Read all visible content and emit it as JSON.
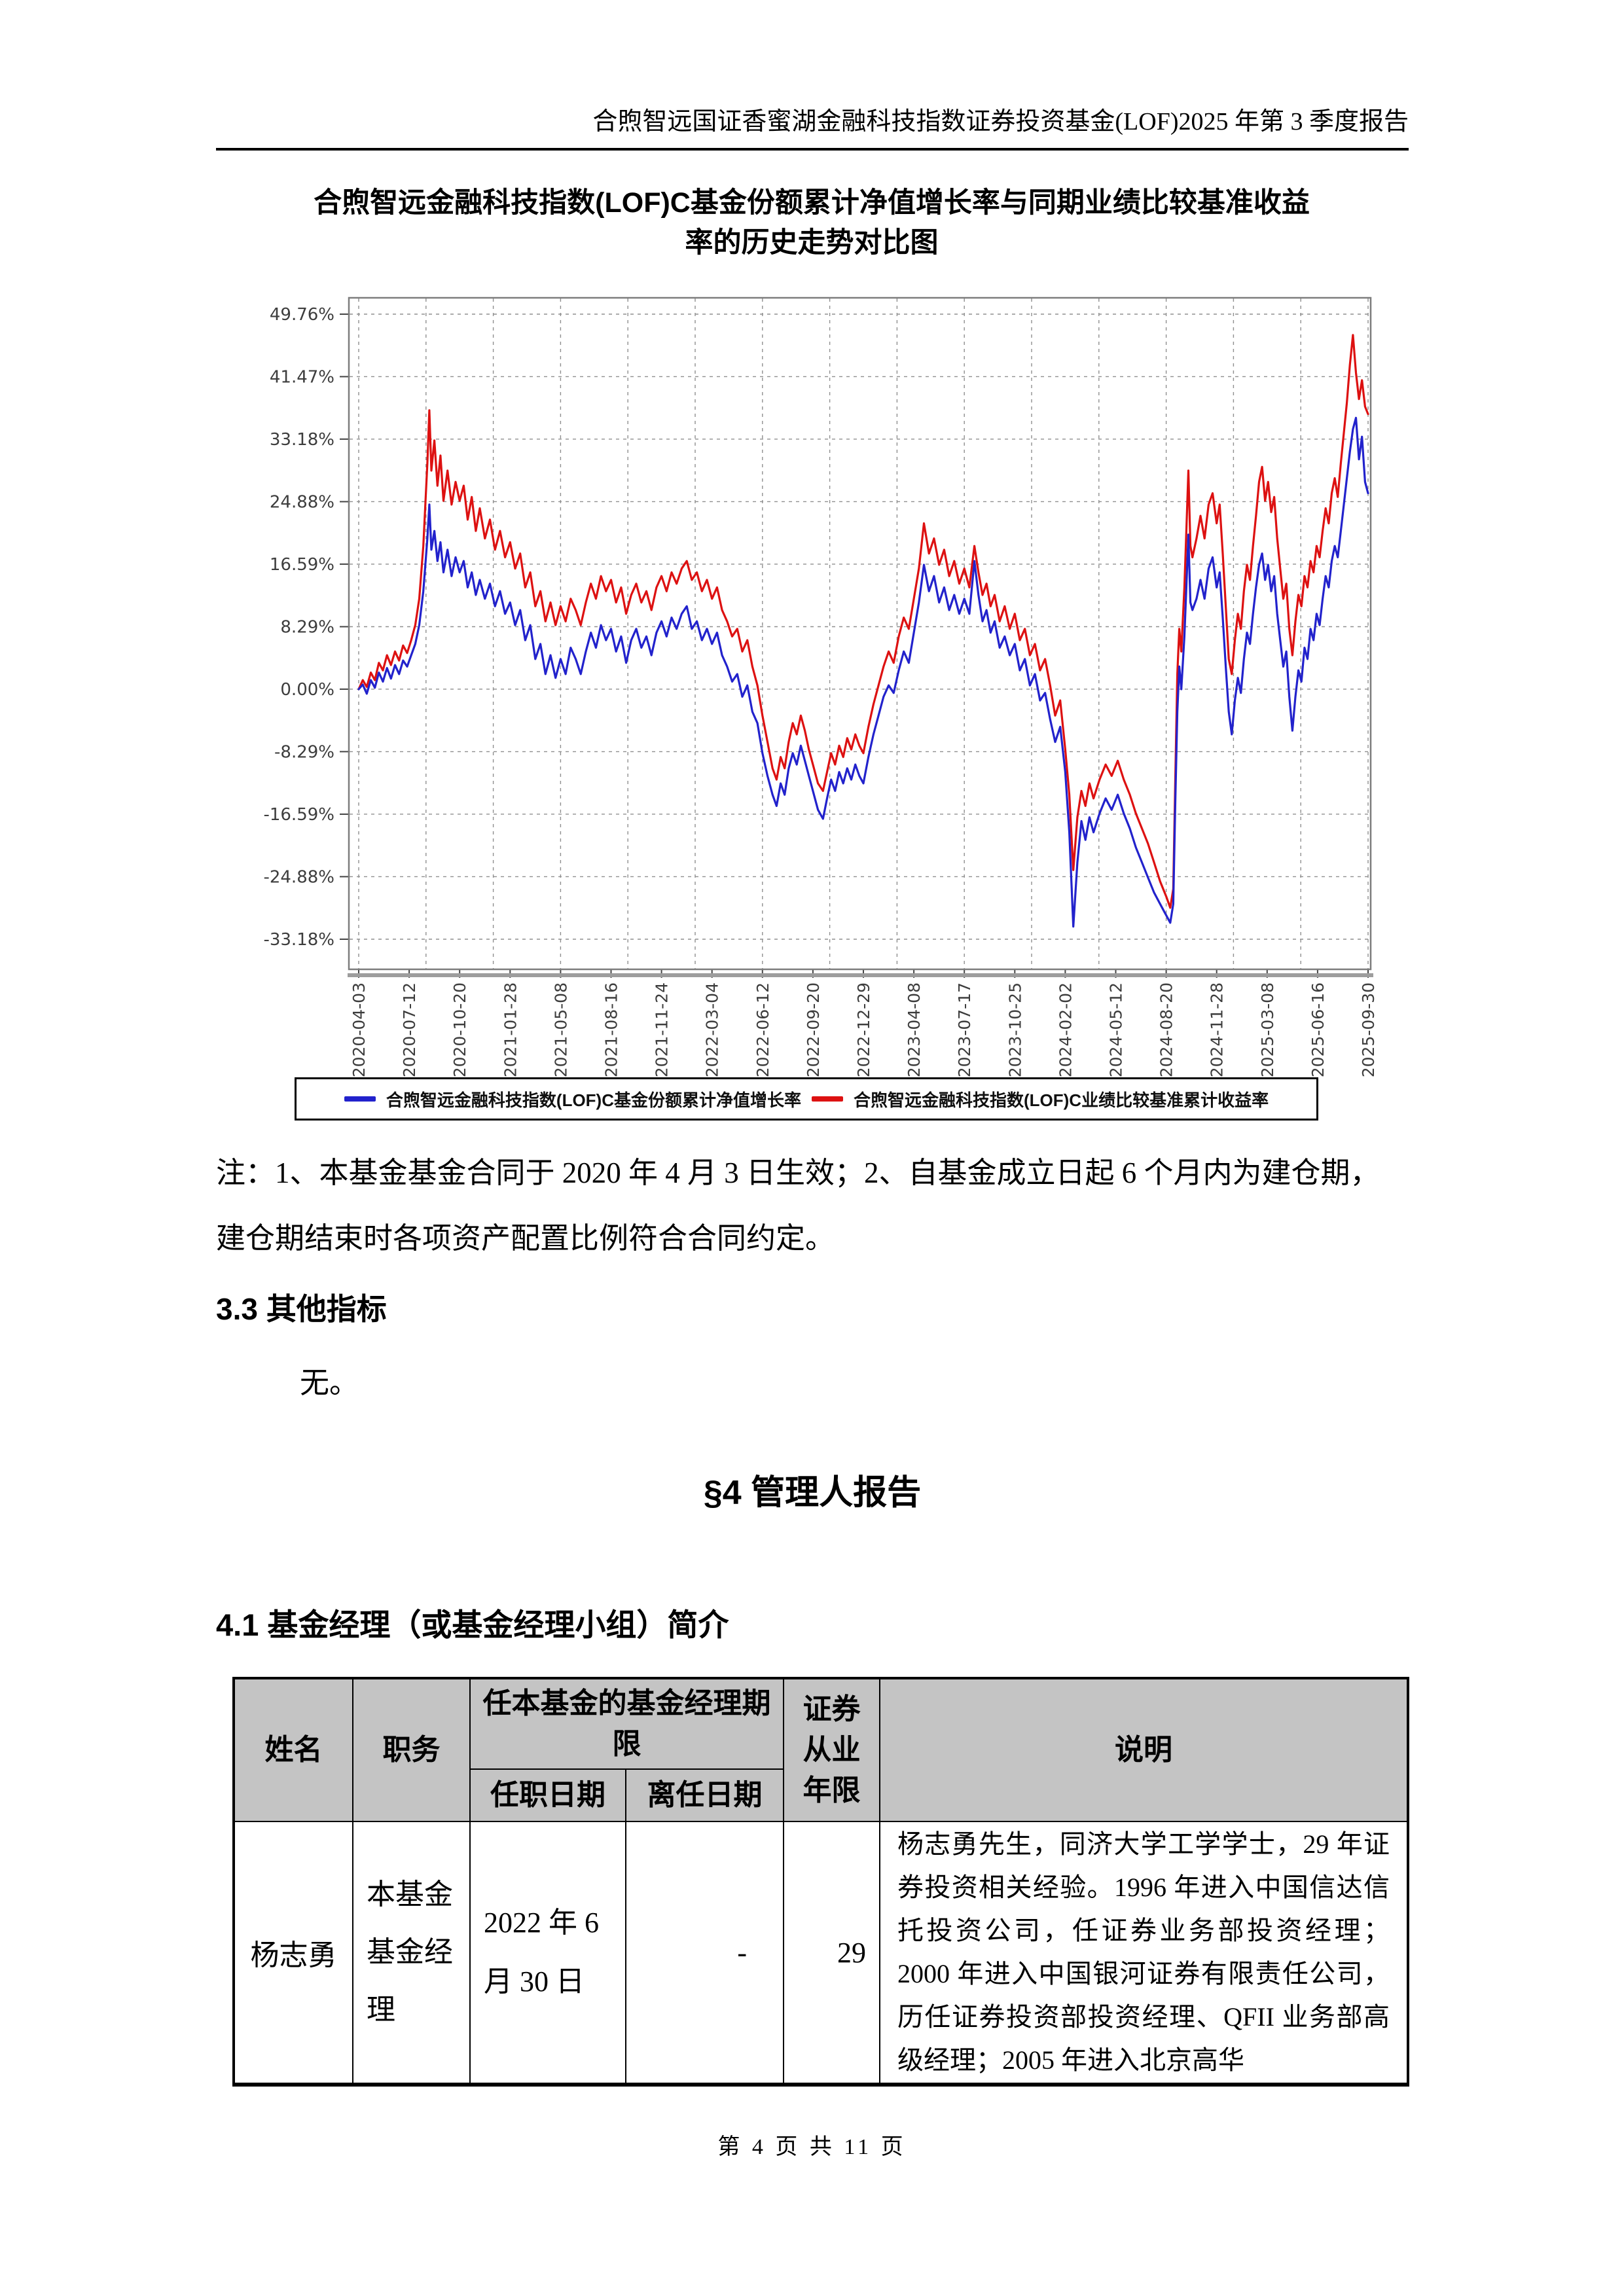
{
  "page": {
    "header_title": "合煦智远国证香蜜湖金融科技指数证券投资基金(LOF)2025 年第 3 季度报告",
    "footer_text": "第 4 页 共 11 页"
  },
  "chart": {
    "title_line1": "合煦智远金融科技指数(LOF)C基金份额累计净值增长率与同期业绩比较基准收益",
    "title_line2": "率的历史走势对比图"
  },
  "chart_data": {
    "type": "line",
    "title": "合煦智远金融科技指数(LOF)C基金份额累计净值增长率与同期业绩比较基准收益率的历史走势对比图",
    "xlabel": "",
    "ylabel": "",
    "grid": true,
    "legend_position": "bottom",
    "axis": {
      "y_max": 49.76,
      "y_min": -33.18
    },
    "y_ticks": [
      {
        "value": 49.76,
        "label": "49.76%"
      },
      {
        "value": 41.47,
        "label": "41.47%"
      },
      {
        "value": 33.18,
        "label": "33.18%"
      },
      {
        "value": 24.88,
        "label": "24.88%"
      },
      {
        "value": 16.59,
        "label": "16.59%"
      },
      {
        "value": 8.29,
        "label": "8.29%"
      },
      {
        "value": 0.0,
        "label": "0.00%"
      },
      {
        "value": -8.29,
        "label": "-8.29%"
      },
      {
        "value": -16.59,
        "label": "-16.59%"
      },
      {
        "value": -24.88,
        "label": "-24.88%"
      },
      {
        "value": -33.18,
        "label": "-33.18%"
      }
    ],
    "x_ticks": [
      "2020-04-03",
      "2020-07-12",
      "2020-10-20",
      "2021-01-28",
      "2021-05-08",
      "2021-08-16",
      "2021-11-24",
      "2022-03-04",
      "2022-06-12",
      "2022-09-20",
      "2022-12-29",
      "2023-04-08",
      "2023-07-17",
      "2023-10-25",
      "2024-02-02",
      "2024-05-12",
      "2024-08-20",
      "2024-11-28",
      "2025-03-08",
      "2025-06-16",
      "2025-09-30"
    ],
    "series": [
      {
        "name": "合煦智远金融科技指数(LOF)C基金份额累计净值增长率",
        "color": "#2222cc"
      },
      {
        "name": "合煦智远金融科技指数(LOF)C业绩比较基准累计收益率",
        "color": "#dd1111"
      }
    ],
    "points": [
      [
        0.0,
        0.0,
        0.0
      ],
      [
        0.004,
        0.6,
        1.2
      ],
      [
        0.008,
        -0.6,
        0.3
      ],
      [
        0.012,
        1.2,
        2.2
      ],
      [
        0.016,
        0.2,
        1.2
      ],
      [
        0.02,
        2.2,
        3.5
      ],
      [
        0.024,
        1.0,
        2.5
      ],
      [
        0.028,
        2.8,
        4.5
      ],
      [
        0.032,
        1.4,
        3.2
      ],
      [
        0.036,
        3.2,
        5.0
      ],
      [
        0.04,
        2.0,
        3.8
      ],
      [
        0.044,
        3.8,
        5.8
      ],
      [
        0.048,
        3.0,
        4.8
      ],
      [
        0.052,
        4.5,
        6.5
      ],
      [
        0.056,
        6.0,
        8.5
      ],
      [
        0.06,
        8.5,
        12.0
      ],
      [
        0.064,
        13.0,
        19.0
      ],
      [
        0.068,
        20.0,
        30.0
      ],
      [
        0.07,
        24.5,
        37.0
      ],
      [
        0.072,
        18.5,
        29.0
      ],
      [
        0.075,
        21.0,
        33.0
      ],
      [
        0.078,
        17.0,
        27.0
      ],
      [
        0.081,
        19.5,
        31.0
      ],
      [
        0.084,
        15.5,
        25.0
      ],
      [
        0.088,
        18.5,
        29.0
      ],
      [
        0.092,
        15.0,
        24.5
      ],
      [
        0.096,
        17.5,
        27.5
      ],
      [
        0.1,
        15.5,
        25.0
      ],
      [
        0.104,
        17.0,
        27.0
      ],
      [
        0.108,
        13.5,
        22.5
      ],
      [
        0.112,
        15.5,
        25.5
      ],
      [
        0.116,
        12.5,
        21.0
      ],
      [
        0.12,
        14.5,
        24.0
      ],
      [
        0.125,
        12.0,
        20.0
      ],
      [
        0.13,
        14.0,
        22.5
      ],
      [
        0.135,
        11.0,
        18.5
      ],
      [
        0.14,
        13.0,
        21.0
      ],
      [
        0.145,
        10.0,
        17.5
      ],
      [
        0.15,
        11.5,
        19.5
      ],
      [
        0.155,
        8.5,
        16.0
      ],
      [
        0.16,
        10.5,
        18.0
      ],
      [
        0.165,
        6.5,
        13.5
      ],
      [
        0.17,
        8.5,
        15.5
      ],
      [
        0.175,
        4.0,
        11.0
      ],
      [
        0.18,
        6.0,
        13.0
      ],
      [
        0.185,
        2.0,
        9.0
      ],
      [
        0.19,
        4.5,
        11.5
      ],
      [
        0.195,
        1.5,
        8.5
      ],
      [
        0.2,
        4.0,
        11.0
      ],
      [
        0.205,
        2.0,
        9.0
      ],
      [
        0.21,
        5.5,
        12.0
      ],
      [
        0.215,
        4.0,
        10.5
      ],
      [
        0.22,
        2.0,
        8.5
      ],
      [
        0.225,
        5.0,
        11.5
      ],
      [
        0.23,
        7.5,
        14.0
      ],
      [
        0.235,
        5.5,
        12.0
      ],
      [
        0.24,
        8.5,
        15.0
      ],
      [
        0.245,
        6.5,
        13.0
      ],
      [
        0.25,
        8.0,
        14.5
      ],
      [
        0.255,
        5.0,
        11.5
      ],
      [
        0.26,
        7.0,
        13.5
      ],
      [
        0.265,
        3.5,
        10.0
      ],
      [
        0.27,
        6.5,
        12.5
      ],
      [
        0.275,
        8.0,
        14.0
      ],
      [
        0.28,
        5.5,
        11.5
      ],
      [
        0.285,
        7.0,
        13.0
      ],
      [
        0.29,
        4.5,
        10.5
      ],
      [
        0.295,
        7.5,
        13.5
      ],
      [
        0.3,
        9.0,
        15.0
      ],
      [
        0.305,
        7.0,
        13.0
      ],
      [
        0.31,
        9.5,
        15.5
      ],
      [
        0.315,
        8.0,
        14.0
      ],
      [
        0.32,
        10.0,
        16.0
      ],
      [
        0.325,
        11.0,
        17.0
      ],
      [
        0.33,
        8.0,
        14.5
      ],
      [
        0.335,
        9.0,
        15.5
      ],
      [
        0.34,
        6.5,
        13.0
      ],
      [
        0.345,
        8.0,
        14.5
      ],
      [
        0.35,
        6.0,
        12.0
      ],
      [
        0.355,
        7.5,
        13.5
      ],
      [
        0.36,
        4.5,
        10.5
      ],
      [
        0.365,
        3.0,
        9.0
      ],
      [
        0.37,
        1.0,
        7.0
      ],
      [
        0.375,
        2.0,
        8.0
      ],
      [
        0.38,
        -1.0,
        5.0
      ],
      [
        0.385,
        0.5,
        6.5
      ],
      [
        0.39,
        -3.0,
        3.0
      ],
      [
        0.395,
        -4.5,
        0.5
      ],
      [
        0.4,
        -8.5,
        -3.5
      ],
      [
        0.405,
        -11.5,
        -7.0
      ],
      [
        0.41,
        -14.0,
        -10.5
      ],
      [
        0.414,
        -15.5,
        -12.0
      ],
      [
        0.418,
        -12.5,
        -9.0
      ],
      [
        0.422,
        -14.0,
        -10.5
      ],
      [
        0.426,
        -10.5,
        -7.0
      ],
      [
        0.43,
        -8.5,
        -4.5
      ],
      [
        0.434,
        -10.0,
        -6.0
      ],
      [
        0.438,
        -7.5,
        -3.5
      ],
      [
        0.442,
        -9.5,
        -5.5
      ],
      [
        0.446,
        -11.5,
        -8.0
      ],
      [
        0.45,
        -13.5,
        -10.0
      ],
      [
        0.455,
        -16.0,
        -12.5
      ],
      [
        0.46,
        -17.2,
        -13.5
      ],
      [
        0.464,
        -14.5,
        -11.0
      ],
      [
        0.468,
        -12.0,
        -8.5
      ],
      [
        0.472,
        -13.5,
        -10.0
      ],
      [
        0.476,
        -11.0,
        -7.5
      ],
      [
        0.48,
        -12.5,
        -9.0
      ],
      [
        0.484,
        -10.5,
        -6.5
      ],
      [
        0.488,
        -12.0,
        -8.0
      ],
      [
        0.492,
        -10.0,
        -6.0
      ],
      [
        0.496,
        -11.5,
        -7.5
      ],
      [
        0.5,
        -12.5,
        -8.5
      ],
      [
        0.505,
        -9.0,
        -5.0
      ],
      [
        0.51,
        -6.0,
        -2.0
      ],
      [
        0.515,
        -3.5,
        0.5
      ],
      [
        0.52,
        -1.0,
        3.0
      ],
      [
        0.525,
        0.5,
        5.0
      ],
      [
        0.53,
        -0.5,
        3.5
      ],
      [
        0.535,
        2.5,
        7.0
      ],
      [
        0.54,
        5.0,
        9.5
      ],
      [
        0.545,
        3.5,
        8.0
      ],
      [
        0.55,
        7.5,
        12.0
      ],
      [
        0.555,
        11.5,
        16.0
      ],
      [
        0.56,
        16.5,
        22.0
      ],
      [
        0.565,
        13.0,
        18.0
      ],
      [
        0.57,
        15.0,
        20.0
      ],
      [
        0.575,
        11.5,
        16.5
      ],
      [
        0.58,
        13.5,
        18.5
      ],
      [
        0.585,
        10.5,
        15.0
      ],
      [
        0.59,
        12.5,
        17.0
      ],
      [
        0.595,
        10.0,
        14.0
      ],
      [
        0.6,
        12.0,
        16.0
      ],
      [
        0.605,
        10.0,
        13.5
      ],
      [
        0.61,
        17.0,
        19.0
      ],
      [
        0.614,
        12.5,
        15.5
      ],
      [
        0.618,
        9.0,
        12.5
      ],
      [
        0.622,
        10.5,
        14.0
      ],
      [
        0.626,
        7.5,
        11.0
      ],
      [
        0.63,
        9.0,
        12.5
      ],
      [
        0.635,
        5.5,
        9.0
      ],
      [
        0.64,
        7.0,
        11.0
      ],
      [
        0.645,
        4.5,
        8.0
      ],
      [
        0.65,
        6.0,
        10.0
      ],
      [
        0.655,
        2.5,
        6.5
      ],
      [
        0.66,
        4.0,
        8.0
      ],
      [
        0.665,
        0.5,
        4.5
      ],
      [
        0.67,
        2.0,
        6.0
      ],
      [
        0.675,
        -1.5,
        2.5
      ],
      [
        0.68,
        -0.5,
        4.0
      ],
      [
        0.685,
        -4.0,
        0.5
      ],
      [
        0.69,
        -7.0,
        -3.5
      ],
      [
        0.695,
        -5.0,
        -1.5
      ],
      [
        0.7,
        -11.0,
        -8.0
      ],
      [
        0.704,
        -19.0,
        -14.0
      ],
      [
        0.708,
        -31.5,
        -24.0
      ],
      [
        0.712,
        -23.0,
        -17.0
      ],
      [
        0.716,
        -17.5,
        -13.5
      ],
      [
        0.72,
        -20.0,
        -15.5
      ],
      [
        0.724,
        -17.0,
        -12.5
      ],
      [
        0.728,
        -19.0,
        -14.5
      ],
      [
        0.734,
        -16.5,
        -12.0
      ],
      [
        0.74,
        -14.5,
        -10.0
      ],
      [
        0.746,
        -16.0,
        -11.5
      ],
      [
        0.752,
        -14.0,
        -9.5
      ],
      [
        0.758,
        -16.5,
        -12.0
      ],
      [
        0.764,
        -18.5,
        -14.0
      ],
      [
        0.77,
        -21.0,
        -16.5
      ],
      [
        0.776,
        -23.0,
        -18.5
      ],
      [
        0.782,
        -25.0,
        -20.5
      ],
      [
        0.788,
        -27.0,
        -23.0
      ],
      [
        0.794,
        -28.5,
        -25.5
      ],
      [
        0.8,
        -30.0,
        -27.5
      ],
      [
        0.804,
        -31.0,
        -29.0
      ],
      [
        0.807,
        -28.5,
        -26.5
      ],
      [
        0.809,
        -15.0,
        -12.0
      ],
      [
        0.811,
        -3.0,
        2.0
      ],
      [
        0.813,
        3.0,
        8.0
      ],
      [
        0.815,
        0.0,
        5.0
      ],
      [
        0.818,
        7.0,
        13.5
      ],
      [
        0.82,
        13.5,
        21.0
      ],
      [
        0.822,
        20.5,
        29.0
      ],
      [
        0.824,
        11.5,
        19.0
      ],
      [
        0.826,
        10.5,
        17.5
      ],
      [
        0.83,
        12.0,
        20.0
      ],
      [
        0.834,
        14.5,
        23.0
      ],
      [
        0.838,
        12.0,
        20.0
      ],
      [
        0.842,
        16.0,
        24.5
      ],
      [
        0.846,
        17.5,
        26.0
      ],
      [
        0.85,
        13.5,
        22.0
      ],
      [
        0.853,
        15.5,
        24.5
      ],
      [
        0.856,
        9.5,
        18.0
      ],
      [
        0.859,
        3.0,
        11.0
      ],
      [
        0.862,
        -3.0,
        4.0
      ],
      [
        0.865,
        -6.0,
        2.0
      ],
      [
        0.868,
        -1.5,
        6.5
      ],
      [
        0.871,
        1.5,
        10.0
      ],
      [
        0.874,
        -0.5,
        8.0
      ],
      [
        0.877,
        4.0,
        13.0
      ],
      [
        0.88,
        7.5,
        16.5
      ],
      [
        0.883,
        6.0,
        14.5
      ],
      [
        0.886,
        10.0,
        19.0
      ],
      [
        0.889,
        13.5,
        23.0
      ],
      [
        0.892,
        16.5,
        27.5
      ],
      [
        0.895,
        18.0,
        29.5
      ],
      [
        0.898,
        14.5,
        25.0
      ],
      [
        0.901,
        16.5,
        27.5
      ],
      [
        0.904,
        13.0,
        23.5
      ],
      [
        0.907,
        15.0,
        25.5
      ],
      [
        0.91,
        10.0,
        20.0
      ],
      [
        0.913,
        6.5,
        16.0
      ],
      [
        0.916,
        3.0,
        12.0
      ],
      [
        0.919,
        5.0,
        14.0
      ],
      [
        0.922,
        -1.0,
        8.0
      ],
      [
        0.925,
        -5.5,
        4.5
      ],
      [
        0.928,
        -1.0,
        9.0
      ],
      [
        0.931,
        2.5,
        12.5
      ],
      [
        0.934,
        1.0,
        11.0
      ],
      [
        0.937,
        5.5,
        15.0
      ],
      [
        0.94,
        4.0,
        13.5
      ],
      [
        0.943,
        8.0,
        17.0
      ],
      [
        0.946,
        6.5,
        15.5
      ],
      [
        0.949,
        10.0,
        19.0
      ],
      [
        0.952,
        8.5,
        17.5
      ],
      [
        0.955,
        12.0,
        21.0
      ],
      [
        0.958,
        15.0,
        24.0
      ],
      [
        0.961,
        13.5,
        22.0
      ],
      [
        0.964,
        17.0,
        26.0
      ],
      [
        0.967,
        19.0,
        28.0
      ],
      [
        0.97,
        17.5,
        25.5
      ],
      [
        0.973,
        21.0,
        30.0
      ],
      [
        0.976,
        24.5,
        34.0
      ],
      [
        0.979,
        28.0,
        38.0
      ],
      [
        0.982,
        31.5,
        43.0
      ],
      [
        0.985,
        34.5,
        47.0
      ],
      [
        0.988,
        36.0,
        42.0
      ],
      [
        0.991,
        30.5,
        38.5
      ],
      [
        0.994,
        33.5,
        41.0
      ],
      [
        0.997,
        27.5,
        37.5
      ],
      [
        1.0,
        26.0,
        36.5
      ]
    ]
  },
  "note": {
    "line1": "注：1、本基金基金合同于 2020 年 4 月 3 日生效；2、自基金成立日起 6 个月内为建仓期，",
    "line2": "建仓期结束时各项资产配置比例符合合同约定。"
  },
  "sections": {
    "s33_title": "3.3 其他指标",
    "s33_body": "无。",
    "s4_title": "§4 管理人报告",
    "s41_title": "4.1 基金经理（或基金经理小组）简介"
  },
  "manager_table": {
    "headers": {
      "name": "姓名",
      "position": "职务",
      "tenure": "任本基金的基金经理期限",
      "start_date": "任职日期",
      "end_date": "离任日期",
      "years": "证券从业年限",
      "description": "说明"
    },
    "row": {
      "name": "杨志勇",
      "position": "本基金基金经理",
      "start_date": "2022 年 6 月 30 日",
      "end_date": "-",
      "years": "29",
      "description": "杨志勇先生，同济大学工学学士，29 年证券投资相关经验。1996 年进入中国信达信托投资公司，任证券业务部投资经理；2000 年进入中国银河证券有限责任公司，历任证券投资部投资经理、QFII 业务部高级经理；2005 年进入北京高华"
    }
  }
}
